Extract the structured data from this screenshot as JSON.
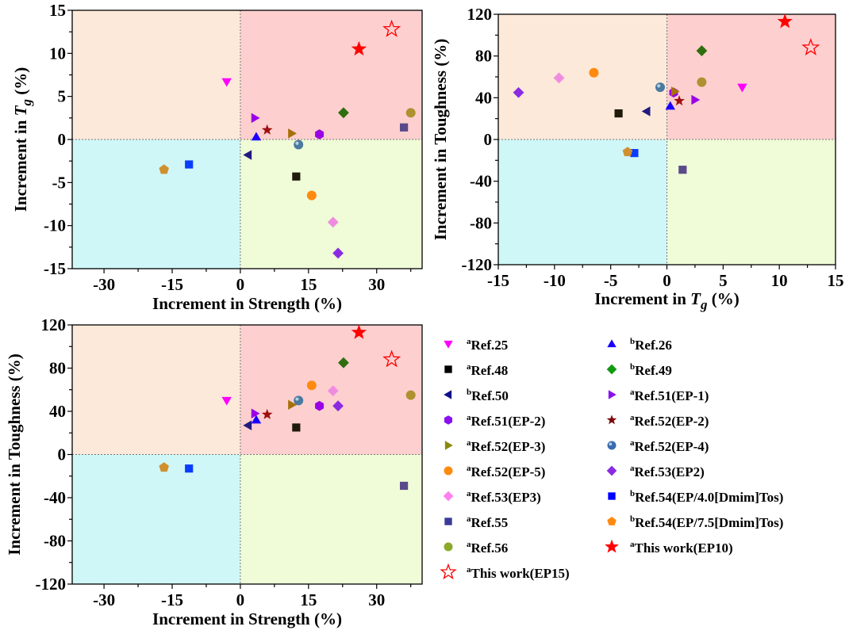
{
  "quadrant_colors": {
    "upper_left": "#fde9d9",
    "upper_right": "#fdcfcf",
    "lower_left": "#cff7f7",
    "lower_right": "#effcd7"
  },
  "chart_data": [
    {
      "type": "scatter",
      "id": "strength-vs-tg",
      "title": "",
      "xlabel": "Increment in Strength (%)",
      "ylabel_parts": [
        "Increment in ",
        "T",
        "g",
        " (%)"
      ],
      "xkey": "strength",
      "ykey": "tg",
      "xlim": [
        -37,
        40
      ],
      "ylim": [
        -15,
        15
      ],
      "xticks": [
        -30,
        -15,
        0,
        15,
        30
      ],
      "xtick_labels": [
        "-30",
        "-15",
        "0",
        "15",
        "30"
      ],
      "yticks": [
        -15,
        -10,
        -5,
        0,
        5,
        10,
        15
      ],
      "ytick_labels": [
        "-15",
        "-10",
        "-5",
        "0",
        "5",
        "10",
        "15"
      ],
      "grid": false,
      "quadrants": true
    },
    {
      "type": "scatter",
      "id": "tg-vs-toughness",
      "title": "",
      "xlabel_parts": [
        "Increment in ",
        "T",
        "g",
        " (%)"
      ],
      "ylabel": "Increment in Toughness (%)",
      "xkey": "tg",
      "ykey": "toughness",
      "xlim": [
        -15,
        15
      ],
      "ylim": [
        -120,
        120
      ],
      "xticks": [
        -15,
        -10,
        -5,
        0,
        5,
        10,
        15
      ],
      "xtick_labels": [
        "-15",
        "-10",
        "-5",
        "0",
        "5",
        "10",
        "15"
      ],
      "yticks": [
        -120,
        -80,
        -40,
        0,
        40,
        80,
        120
      ],
      "ytick_labels": [
        "-120",
        "-80",
        "-40",
        "0",
        "40",
        "80",
        "120"
      ],
      "grid": false,
      "quadrants": true
    },
    {
      "type": "scatter",
      "id": "strength-vs-toughness",
      "title": "",
      "xlabel": "Increment in Strength (%)",
      "ylabel": "Increment in Toughness (%)",
      "xkey": "strength",
      "ykey": "toughness",
      "xlim": [
        -37,
        40
      ],
      "ylim": [
        -120,
        120
      ],
      "xticks": [
        -30,
        -15,
        0,
        15,
        30
      ],
      "xtick_labels": [
        "-30",
        "-15",
        "0",
        "15",
        "30"
      ],
      "yticks": [
        -120,
        -80,
        -40,
        0,
        40,
        80,
        120
      ],
      "ytick_labels": [
        "-120",
        "-80",
        "-40",
        "0",
        "40",
        "80",
        "120"
      ],
      "grid": false,
      "quadrants": true
    }
  ],
  "series": [
    {
      "sup": "a",
      "name": "Ref.25",
      "marker": "triangle-down",
      "color": "#ff00ff",
      "strength": -3.0,
      "tg": 6.7,
      "toughness": 50
    },
    {
      "sup": "b",
      "name": "Ref.26",
      "marker": "triangle-up",
      "color": "#1a00ff",
      "strength": 3.5,
      "tg": 0.3,
      "toughness": 32
    },
    {
      "sup": "a",
      "name": "Ref.48",
      "marker": "square",
      "color": "#1f1a0a",
      "strength": 12.3,
      "tg": -4.3,
      "toughness": 25
    },
    {
      "sup": "b",
      "name": "Ref.49",
      "marker": "diamond",
      "color": "#2e6e0e",
      "strength": 22.7,
      "tg": 3.1,
      "toughness": 85
    },
    {
      "sup": "b",
      "name": "Ref.50",
      "marker": "triangle-left",
      "color": "#221a80",
      "strength": 1.7,
      "tg": -1.8,
      "toughness": 27
    },
    {
      "sup": "a",
      "name": "Ref.51(EP-1)",
      "marker": "triangle-right",
      "color": "#9a00e6",
      "strength": 3.2,
      "tg": 2.5,
      "toughness": 38
    },
    {
      "sup": "a",
      "name": "Ref.51(EP-2)",
      "marker": "hexagon",
      "color": "#9a00e6",
      "strength": 17.4,
      "tg": 0.6,
      "toughness": 45
    },
    {
      "sup": "a",
      "name": "Ref.52(EP-2)",
      "marker": "star",
      "color": "#a00f0f",
      "strength": 5.9,
      "tg": 1.1,
      "toughness": 37
    },
    {
      "sup": "a",
      "name": "Ref.52(EP-3)",
      "marker": "triangle-right",
      "color": "#a8700a",
      "strength": 11.3,
      "tg": 0.7,
      "toughness": 46
    },
    {
      "sup": "a",
      "name": "Ref.52(EP-4)",
      "marker": "sphere",
      "color": "#4a7aa0",
      "strength": 12.8,
      "tg": -0.6,
      "toughness": 50
    },
    {
      "sup": "a",
      "name": "Ref.52(EP-5)",
      "marker": "circle",
      "color": "#ff8a10",
      "strength": 15.7,
      "tg": -6.5,
      "toughness": 64
    },
    {
      "sup": "a",
      "name": "Ref.53(EP2)",
      "marker": "diamond",
      "color": "#8a2be2",
      "strength": 21.5,
      "tg": -13.2,
      "toughness": 45
    },
    {
      "sup": "a",
      "name": "Ref.53(EP3)",
      "marker": "diamond",
      "color": "#f08ce0",
      "strength": 20.4,
      "tg": -9.6,
      "toughness": 59
    },
    {
      "sup": "b",
      "name": "Ref.54(EP/4.0[Dmim]Tos)",
      "marker": "square",
      "color": "#0a3cff",
      "strength": -11.3,
      "tg": -2.9,
      "toughness": -13
    },
    {
      "sup": "a",
      "name": "Ref.55",
      "marker": "square",
      "color": "#5a4a8a",
      "strength": 36.0,
      "tg": 1.4,
      "toughness": -29
    },
    {
      "sup": "b",
      "name": "Ref.54(EP/7.5[Dmim]Tos)",
      "marker": "pentagon",
      "color": "#d09030",
      "strength": -16.8,
      "tg": -3.5,
      "toughness": -12
    },
    {
      "sup": "a",
      "name": "Ref.56",
      "marker": "circle",
      "color": "#b09030",
      "strength": 37.5,
      "tg": 3.1,
      "toughness": 55
    },
    {
      "sup": "a",
      "name": "This work(EP10)",
      "marker": "star-large",
      "color": "#ff0000",
      "strength": 26.1,
      "tg": 10.5,
      "toughness": 113
    },
    {
      "sup": "a",
      "name": "This work(EP15)",
      "marker": "star-open",
      "color": "#ff0000",
      "strength": 33.3,
      "tg": 12.8,
      "toughness": 88
    }
  ],
  "legend": {
    "placement": "bottom-right",
    "columns": 2,
    "order": [
      0,
      1,
      2,
      3,
      4,
      5,
      6,
      7,
      8,
      9,
      10,
      11,
      12,
      13,
      14,
      15,
      16,
      17,
      18
    ],
    "legend_colors": {
      "Ref.48": "#000000",
      "Ref.49": "#119a11",
      "Ref.50": "#10108a",
      "Ref.51(EP-1)": "#8a10f0",
      "Ref.51(EP-2)": "#8a10f0",
      "Ref.52(EP-2)": "#7a0a0a",
      "Ref.52(EP-3)": "#8a8a0a",
      "Ref.52(EP-4)": "#3a6ab0",
      "Ref.53(EP2)": "#8a2be2",
      "Ref.53(EP3)": "#ff80f0",
      "Ref.54(EP/4.0[Dmim]Tos)": "#0000ff",
      "Ref.55": "#3a3a9a",
      "Ref.54(EP/7.5[Dmim]Tos)": "#ff8a10",
      "Ref.56": "#8aaa2a",
      "Ref.52(EP-5)": "#ff8a10"
    }
  }
}
